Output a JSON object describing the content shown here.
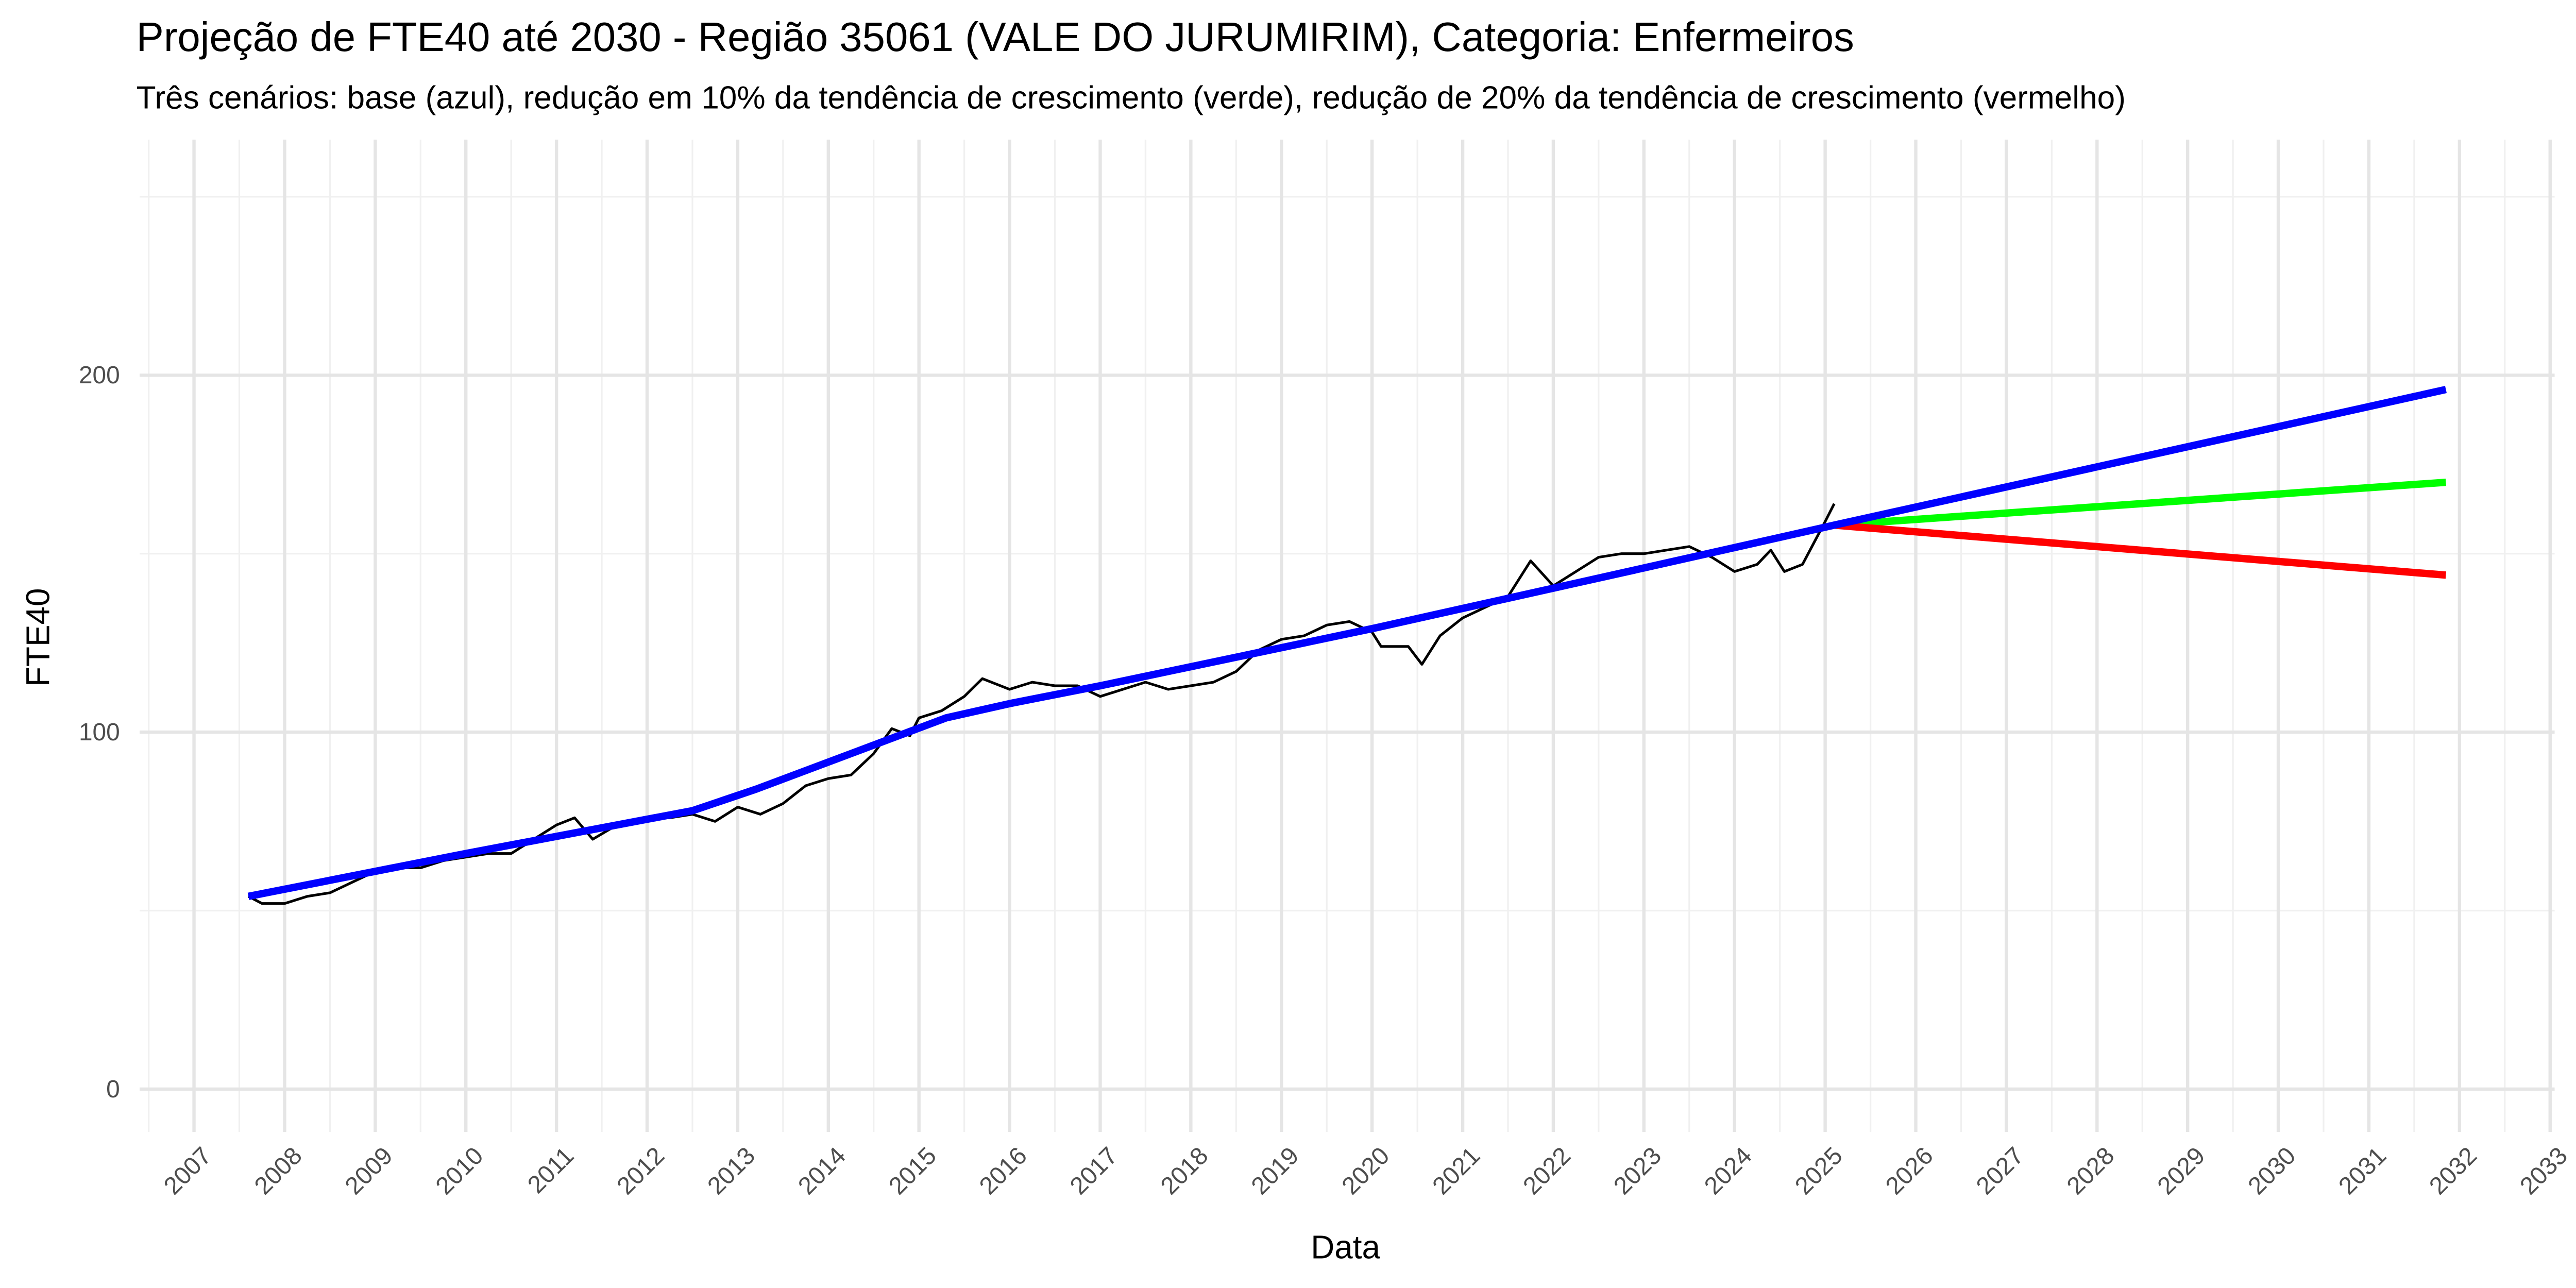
{
  "chart_data": {
    "type": "line",
    "title": "Projeção de FTE40 até 2030 - Região 35061 (VALE DO JURUMIRIM), Categoria: Enfermeiros",
    "subtitle": "Três cenários: base (azul), redução em 10% da tendência de crescimento (verde), redução de 20% da tendência de crescimento (vermelho)",
    "x_label": "Data",
    "y_label": "FTE40",
    "xlim": [
      2006.4,
      2033.05
    ],
    "xticks": [
      2007,
      2008,
      2009,
      2010,
      2011,
      2012,
      2013,
      2014,
      2015,
      2016,
      2017,
      2018,
      2019,
      2020,
      2021,
      2022,
      2023,
      2024,
      2025,
      2026,
      2027,
      2028,
      2029,
      2030,
      2031,
      2032,
      2033
    ],
    "ylim": [
      -12,
      266
    ],
    "yticks": [
      0,
      100,
      200
    ],
    "grid": true,
    "minor_grid": true,
    "series": [
      {
        "color": "#000000",
        "width": 1.6,
        "x": [
          2007.6,
          2007.75,
          2008.0,
          2008.25,
          2008.5,
          2008.75,
          2009.0,
          2009.25,
          2009.5,
          2009.75,
          2010.0,
          2010.25,
          2010.5,
          2010.75,
          2011.0,
          2011.2,
          2011.4,
          2011.6,
          2011.8,
          2012.0,
          2012.25,
          2012.5,
          2012.75,
          2013.0,
          2013.25,
          2013.5,
          2013.75,
          2014.0,
          2014.25,
          2014.5,
          2014.7,
          2014.9,
          2015.0,
          2015.25,
          2015.5,
          2015.7,
          2016.0,
          2016.25,
          2016.5,
          2016.75,
          2017.0,
          2017.25,
          2017.5,
          2017.75,
          2018.0,
          2018.25,
          2018.5,
          2018.75,
          2019.0,
          2019.25,
          2019.5,
          2019.75,
          2020.0,
          2020.1,
          2020.4,
          2020.55,
          2020.75,
          2021.0,
          2021.25,
          2021.5,
          2021.75,
          2022.0,
          2022.25,
          2022.5,
          2022.75,
          2023.0,
          2023.25,
          2023.5,
          2023.75,
          2024.0,
          2024.25,
          2024.4,
          2024.55,
          2024.75,
          2025.0,
          2025.1
        ],
        "values": [
          54,
          52,
          52,
          54,
          55,
          58,
          61,
          62,
          62,
          64,
          65,
          66,
          66,
          70,
          74,
          76,
          70,
          73,
          75,
          76,
          76,
          77,
          75,
          79,
          77,
          80,
          85,
          87,
          88,
          94,
          101,
          99,
          104,
          106,
          110,
          115,
          112,
          114,
          113,
          113,
          110,
          112,
          114,
          112,
          113,
          114,
          117,
          123,
          126,
          127,
          130,
          131,
          128,
          124,
          124,
          119,
          127,
          132,
          135,
          138,
          148,
          141,
          145,
          149,
          150,
          150,
          151,
          152,
          149,
          145,
          147,
          151,
          145,
          147,
          159,
          164
        ]
      },
      {
        "color": "#00ff00",
        "width": 4.5,
        "x": [
          2025.1,
          2031.85
        ],
        "values": [
          158,
          170
        ]
      },
      {
        "color": "#ff0000",
        "width": 4.5,
        "x": [
          2025.1,
          2031.85
        ],
        "values": [
          158,
          144
        ]
      },
      {
        "color": "#0000ff",
        "width": 4.5,
        "x": [
          2007.6,
          2010,
          2012.5,
          2013.2,
          2015.3,
          2016,
          2017,
          2020,
          2023,
          2025.1,
          2031.85
        ],
        "values": [
          54,
          66,
          78,
          84,
          104,
          108,
          113,
          129,
          146,
          158,
          196
        ]
      }
    ]
  }
}
